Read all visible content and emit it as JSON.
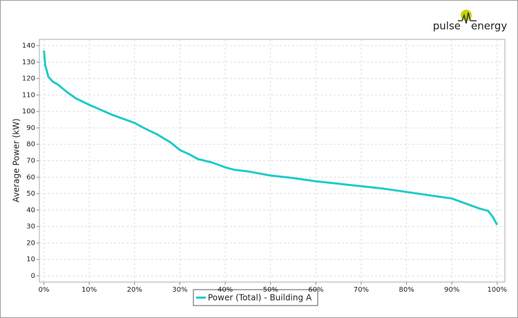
{
  "logo": {
    "left": "pulse",
    "right": "energy"
  },
  "chart_data": {
    "type": "line",
    "y_label": "Average Power (kW)",
    "x": [
      0,
      0.3,
      0.7,
      1,
      2,
      3,
      5,
      7,
      10,
      15,
      20,
      22,
      25,
      28,
      30,
      32,
      34,
      37,
      40,
      42,
      45,
      50,
      55,
      60,
      65,
      70,
      75,
      80,
      85,
      90,
      92,
      94,
      96,
      98,
      99,
      100
    ],
    "series": [
      {
        "name": "Power (Total) - Building A",
        "color": "#1ecaca",
        "values": [
          137,
          128,
          124,
          121,
          118,
          116.5,
          112,
          108,
          104,
          98,
          93,
          90,
          86,
          81,
          76.5,
          74,
          71,
          69,
          66,
          64.5,
          63.5,
          61,
          59.5,
          57.5,
          56,
          54.5,
          53,
          51,
          49,
          47,
          45,
          43,
          41,
          39.5,
          36,
          31
        ]
      }
    ],
    "xlim": [
      -1,
      101.7
    ],
    "ylim": [
      -3.8,
      143.8
    ],
    "xticks": [
      {
        "value": 0,
        "label": "0%"
      },
      {
        "value": 10,
        "label": "10%"
      },
      {
        "value": 20,
        "label": "20%"
      },
      {
        "value": 30,
        "label": "30%"
      },
      {
        "value": 40,
        "label": "40%"
      },
      {
        "value": 50,
        "label": "50%"
      },
      {
        "value": 60,
        "label": "60%"
      },
      {
        "value": 70,
        "label": "70%"
      },
      {
        "value": 80,
        "label": "80%"
      },
      {
        "value": 90,
        "label": "90%"
      },
      {
        "value": 100,
        "label": "100%"
      }
    ],
    "yticks": [
      0,
      10,
      20,
      30,
      40,
      50,
      60,
      70,
      80,
      90,
      100,
      110,
      120,
      130,
      140
    ],
    "grid": true,
    "legend": "bottom"
  }
}
